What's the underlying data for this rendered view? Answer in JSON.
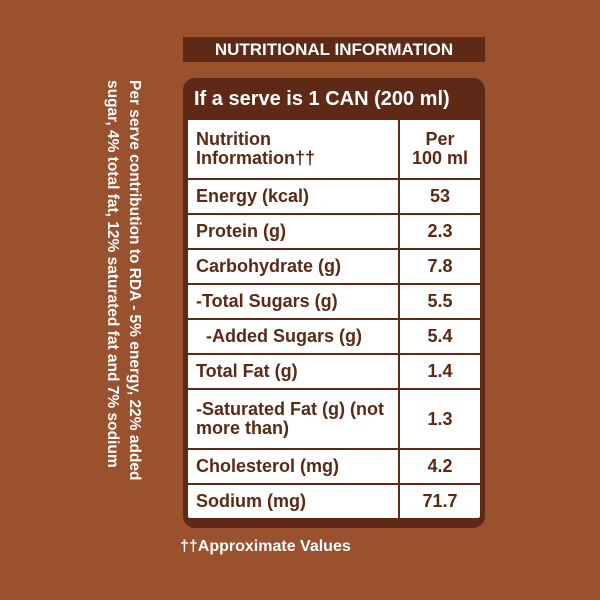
{
  "header": {
    "title": "NUTRITIONAL INFORMATION"
  },
  "table": {
    "caption": "If a serve is 1 CAN (200 ml)",
    "columns": [
      "Nutrition Information††",
      "Per 100 ml"
    ],
    "rows": [
      [
        "Energy (kcal)",
        53
      ],
      [
        "Protein (g)",
        2.3
      ],
      [
        "Carbohydrate (g)",
        7.8
      ],
      [
        "-Total Sugars (g)",
        5.5
      ],
      [
        "-Added Sugars (g)",
        5.4
      ],
      [
        "Total Fat (g)",
        1.4
      ],
      [
        "-Saturated Fat (g) (not more than)",
        1.3
      ],
      [
        "Cholesterol (mg)",
        4.2
      ],
      [
        "Sodium (mg)",
        71.7
      ]
    ]
  },
  "side_note": "Per serve contribution to RDA - 5% energy, 22% added sugar, 4% total fat, 12% saturated fat and 7% sodium",
  "footnote": "††Approximate Values"
}
